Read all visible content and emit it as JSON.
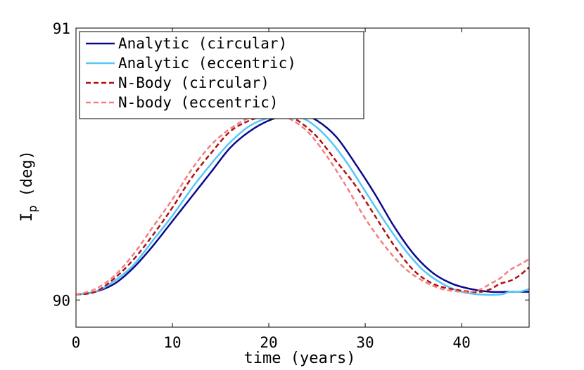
{
  "chart_data": {
    "type": "line",
    "title": "",
    "xlabel": "time (years)",
    "ylabel_main": "I",
    "ylabel_sub": "p",
    "ylabel_unit": "(deg)",
    "xlim": [
      0,
      47
    ],
    "ylim": [
      89.9,
      91.0
    ],
    "xticks": [
      0,
      10,
      20,
      30,
      40
    ],
    "xtick_labels": [
      "0",
      "10",
      "20",
      "30",
      "40"
    ],
    "yticks": [
      90,
      91
    ],
    "ytick_labels": [
      "90",
      "91"
    ],
    "grid": false,
    "legend_position": "top-left",
    "series": [
      {
        "name": "Analytic (circular)",
        "color": "#0a0a8c",
        "dash": "solid",
        "x": [
          0,
          2,
          4,
          6,
          8,
          10,
          12,
          14,
          16,
          18,
          20,
          22,
          23.5,
          25,
          27,
          29,
          31,
          33,
          35,
          37,
          39,
          41,
          43,
          45,
          46,
          47
        ],
        "y": [
          90.02,
          90.03,
          90.06,
          90.12,
          90.2,
          90.29,
          90.38,
          90.47,
          90.56,
          90.62,
          90.66,
          90.68,
          90.68,
          90.66,
          90.6,
          90.5,
          90.39,
          90.27,
          90.17,
          90.1,
          90.06,
          90.04,
          90.03,
          90.03,
          90.03,
          90.03
        ]
      },
      {
        "name": "Analytic (eccentric)",
        "color": "#55c8f8",
        "dash": "solid",
        "x": [
          0,
          2,
          4,
          6,
          8,
          10,
          12,
          14,
          16,
          18,
          20,
          22,
          24,
          26,
          28,
          30,
          32,
          34,
          36,
          38,
          40,
          42,
          44,
          45,
          46,
          47
        ],
        "y": [
          90.02,
          90.03,
          90.07,
          90.13,
          90.22,
          90.31,
          90.41,
          90.5,
          90.58,
          90.64,
          90.67,
          90.68,
          90.66,
          90.6,
          90.51,
          90.4,
          90.29,
          90.19,
          90.11,
          90.06,
          90.03,
          90.02,
          90.02,
          90.03,
          90.03,
          90.04
        ]
      },
      {
        "name": "N-Body (circular)",
        "color": "#b01010",
        "dash": "dashed",
        "x": [
          0,
          2,
          4,
          6,
          8,
          10,
          12,
          14,
          16,
          18,
          20,
          21.5,
          23,
          25,
          27,
          29,
          31,
          33,
          35,
          37,
          39,
          41,
          42,
          43,
          44,
          45,
          46,
          47
        ],
        "y": [
          90.02,
          90.03,
          90.08,
          90.15,
          90.24,
          90.34,
          90.45,
          90.54,
          90.62,
          90.66,
          90.68,
          90.68,
          90.66,
          90.6,
          90.51,
          90.42,
          90.31,
          90.2,
          90.11,
          90.06,
          90.04,
          90.03,
          90.03,
          90.04,
          90.06,
          90.07,
          90.09,
          90.12
        ]
      },
      {
        "name": "N-body (eccentric)",
        "color": "#f28080",
        "dash": "dashed",
        "x": [
          0,
          2,
          4,
          6,
          8,
          10,
          12,
          14,
          16,
          18,
          20,
          21,
          22,
          24,
          26,
          28,
          30,
          32,
          34,
          36,
          38,
          40,
          41,
          42,
          43,
          44,
          45,
          46,
          47
        ],
        "y": [
          90.02,
          90.04,
          90.09,
          90.17,
          90.27,
          90.37,
          90.48,
          90.57,
          90.63,
          90.67,
          90.68,
          90.68,
          90.67,
          90.62,
          90.53,
          90.42,
          90.3,
          90.2,
          90.12,
          90.07,
          90.04,
          90.03,
          90.03,
          90.04,
          90.06,
          90.08,
          90.11,
          90.13,
          90.15
        ]
      }
    ]
  }
}
